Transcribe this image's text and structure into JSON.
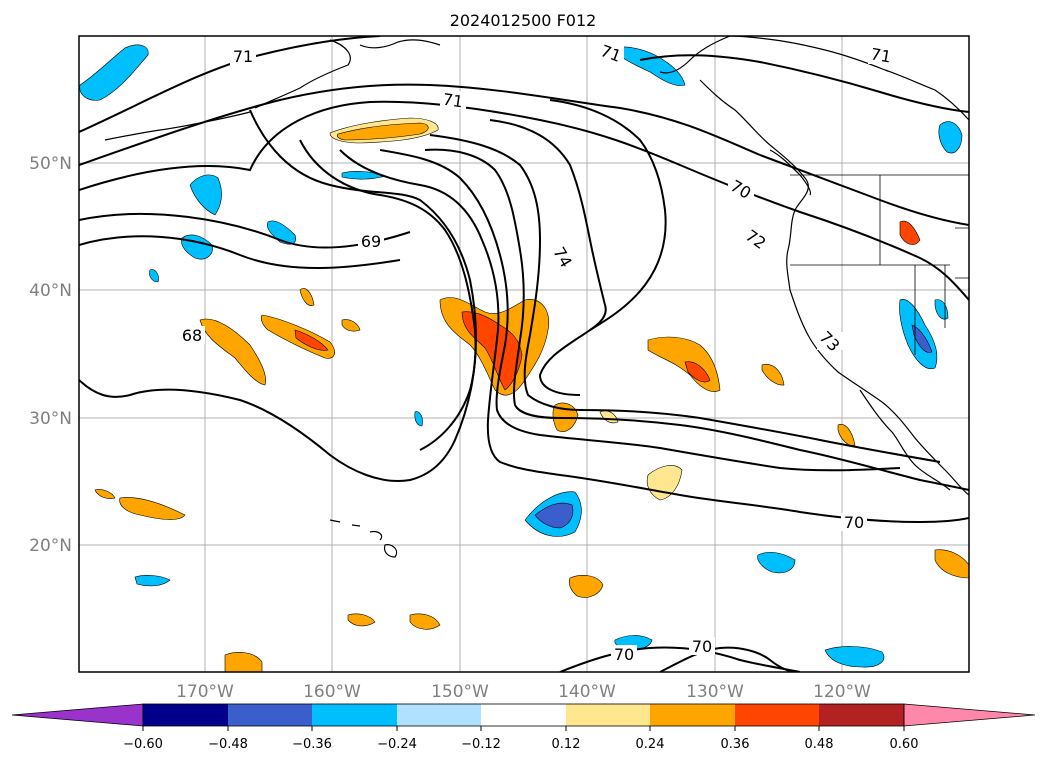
{
  "title": "2024012500 F012",
  "latitude_labels": [
    "50°N",
    "40°N",
    "30°N",
    "20°N"
  ],
  "longitude_labels": [
    "170°W",
    "160°W",
    "150°W",
    "140°W",
    "130°W",
    "120°W"
  ],
  "contour_labels": [
    "71",
    "71",
    "71",
    "71",
    "70",
    "72",
    "69",
    "74",
    "68",
    "73",
    "70",
    "70",
    "70"
  ],
  "colorbar": {
    "tick_labels": [
      "−0.60",
      "−0.48",
      "−0.36",
      "−0.24",
      "−0.12",
      "0.12",
      "0.24",
      "0.36",
      "0.48",
      "0.60"
    ],
    "colors": [
      "#9933cc",
      "#00008b",
      "#3a5fcd",
      "#00bfff",
      "#b0e2ff",
      "#ffffff",
      "#ffe78f",
      "#ffa500",
      "#ff4500",
      "#b22222",
      "#ff88aa"
    ]
  },
  "colors": {
    "grid": "#b0b0b0",
    "coastline": "#000000",
    "contour": "#000000"
  }
}
